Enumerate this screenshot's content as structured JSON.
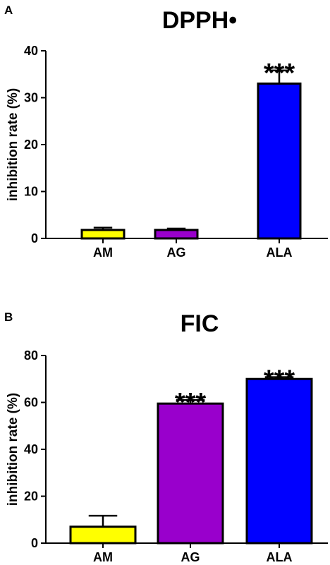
{
  "chart_data": [
    {
      "panel": "A",
      "type": "bar",
      "title": "DPPH•",
      "xlabel": "",
      "ylabel": "inhibition rate (%)",
      "ylim": [
        0,
        40
      ],
      "yticks": [
        0,
        10,
        20,
        30,
        40
      ],
      "categories": [
        "AM",
        "AG",
        "ALA"
      ],
      "values": [
        1.8,
        1.8,
        33.0
      ],
      "errors": [
        0.5,
        0.3,
        2.8
      ],
      "colors": [
        "#ffff00",
        "#9900cc",
        "#0000ff"
      ],
      "annotations": [
        "",
        "",
        "***"
      ],
      "grid": false,
      "legend": "none"
    },
    {
      "panel": "B",
      "type": "bar",
      "title": "FIC",
      "xlabel": "",
      "ylabel": "inhibition rate (%)",
      "ylim": [
        0,
        80
      ],
      "yticks": [
        0,
        20,
        40,
        60,
        80
      ],
      "categories": [
        "AM",
        "AG",
        "ALA"
      ],
      "values": [
        7.0,
        59.5,
        70.0
      ],
      "errors": [
        4.7,
        1.5,
        0.8
      ],
      "colors": [
        "#ffff00",
        "#9900cc",
        "#0000ff"
      ],
      "annotations": [
        "",
        "***",
        "***"
      ],
      "grid": false,
      "legend": "none"
    }
  ]
}
